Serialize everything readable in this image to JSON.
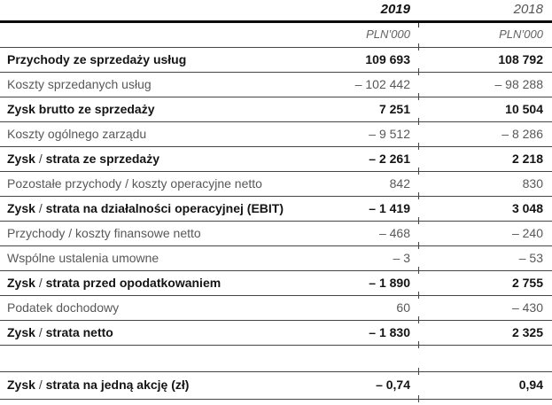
{
  "header": {
    "year_2019": "2019",
    "year_2018": "2018",
    "unit_2019": "PLN’000",
    "unit_2018": "PLN’000"
  },
  "colors": {
    "bold_text": "#141414",
    "regular_text": "#585858",
    "rule_thin": "#454545",
    "rule_thick": "#0c0c0c"
  },
  "table": {
    "rows": [
      {
        "label": "Przychody ze sprzedaży usług",
        "v2019": "109 693",
        "v2018": "108 792"
      },
      {
        "label": "Koszty sprzedanych usług",
        "v2019": "– 102 442",
        "v2018": "– 98 288"
      },
      {
        "label": "Zysk brutto ze sprzedaży",
        "v2019": "7 251",
        "v2018": "10 504"
      },
      {
        "label": "Koszty ogólnego zarządu",
        "v2019": "– 9 512",
        "v2018": "– 8 286"
      },
      {
        "label": "Zysk / strata ze sprzedaży",
        "v2019": "– 2 261",
        "v2018": "2 218"
      },
      {
        "label": "Pozostałe przychody / koszty operacyjne netto",
        "v2019": "842",
        "v2018": "830"
      },
      {
        "label": "Zysk / strata na działalności operacyjnej (EBIT)",
        "v2019": "– 1 419",
        "v2018": "3 048"
      },
      {
        "label": "Przychody / koszty finansowe netto",
        "v2019": "– 468",
        "v2018": "– 240"
      },
      {
        "label": "Wspólne ustalenia umowne",
        "v2019": "– 3",
        "v2018": "– 53"
      },
      {
        "label": "Zysk / strata przed opodatkowaniem",
        "v2019": "– 1 890",
        "v2018": "2 755"
      },
      {
        "label": "Podatek dochodowy",
        "v2019": "60",
        "v2018": "– 430"
      },
      {
        "label": "Zysk / strata netto",
        "v2019": "– 1 830",
        "v2018": "2 325"
      },
      {
        "label": "Zysk / strata na jedną akcję (zł)",
        "v2019": "– 0,74",
        "v2018": "0,94"
      }
    ]
  }
}
